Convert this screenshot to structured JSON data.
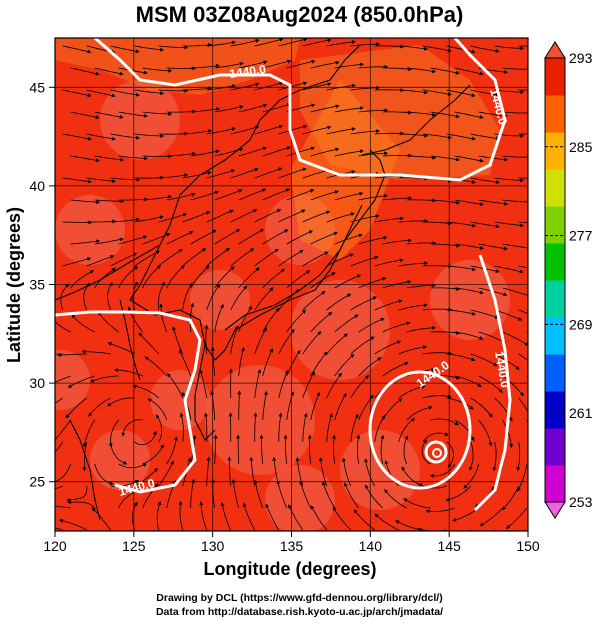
{
  "chart_data": {
    "type": "heatmap",
    "title": "MSM 03Z08Aug2024 (850.0hPa)",
    "xlabel": "Longitude (degrees)",
    "ylabel": "Latitude  (degrees)",
    "xlim": [
      120,
      150
    ],
    "ylim": [
      22.5,
      47.5
    ],
    "x_ticks": [
      "120",
      "125",
      "130",
      "135",
      "140",
      "145",
      "150"
    ],
    "y_ticks": [
      "25",
      "30",
      "35",
      "40",
      "45"
    ],
    "colorbar": {
      "min": 253,
      "max": 293,
      "tick_labels": [
        "293",
        "285",
        "277",
        "269",
        "261",
        "253"
      ],
      "colors": [
        "#d000d0",
        "#7000d0",
        "#0000c8",
        "#0060ff",
        "#00c0ff",
        "#00d0a0",
        "#00c000",
        "#80d000",
        "#d0e000",
        "#ffb000",
        "#ff6000",
        "#e82000"
      ]
    },
    "contours": [
      {
        "label": "1440.0",
        "color": "#ffffff"
      },
      {
        "label": "1440.0",
        "color": "#ffffff"
      },
      {
        "label": "1440.0",
        "color": "#ffffff"
      },
      {
        "label": "1440.0",
        "color": "#ffffff"
      },
      {
        "label": "1440.0",
        "color": "#ffffff"
      }
    ],
    "field_color": "#f03010",
    "warm_patch_color": "#f06a55"
  },
  "credits": {
    "line1": "Drawing by DCL (https://www.gfd-dennou.org/library/dcl/)",
    "line2": "Data from http://database.rish.kyoto-u.ac.jp/arch/jmadata/"
  }
}
